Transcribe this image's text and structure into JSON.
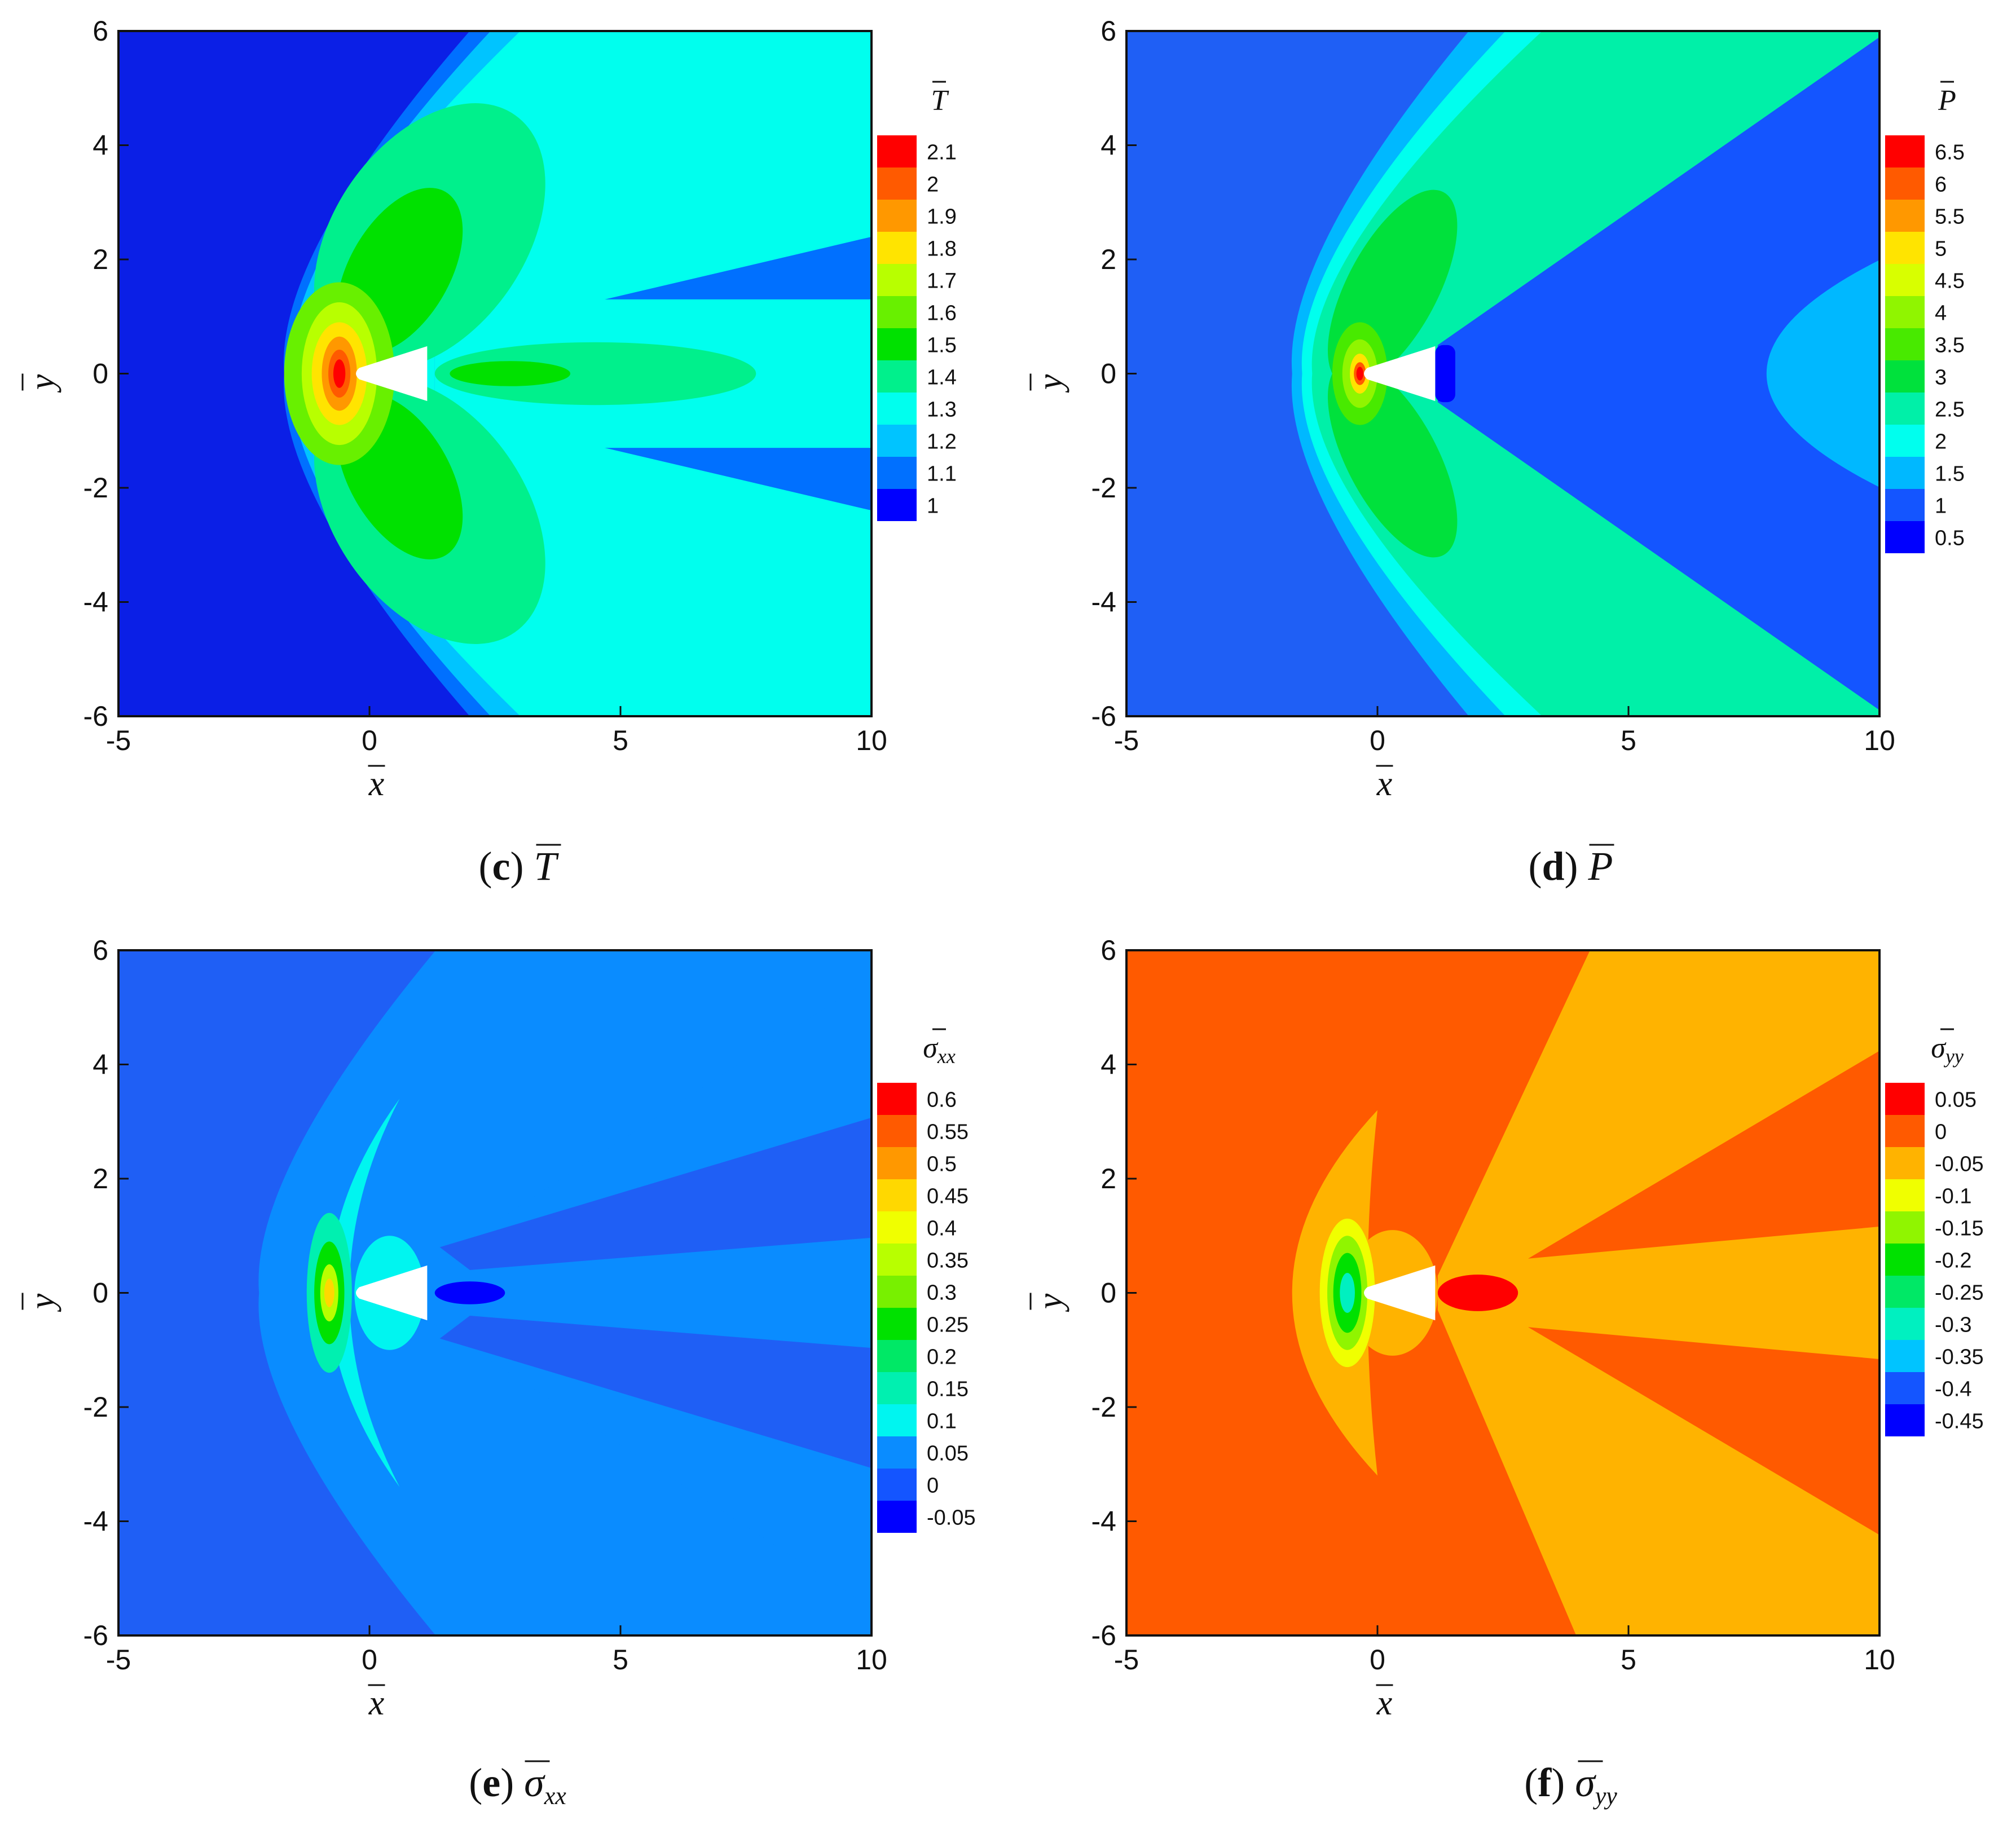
{
  "chart_data": [
    {
      "type": "heatmap",
      "panel": "c",
      "caption_tag": "c",
      "caption_var": "T",
      "xlabel": "x",
      "ylabel": "y",
      "xlim": [
        -5,
        10
      ],
      "ylim": [
        -6,
        6
      ],
      "xticks": [
        "-5",
        "0",
        "5",
        "10"
      ],
      "yticks": [
        "6",
        "4",
        "2",
        "0",
        "-2",
        "-4",
        "-6"
      ],
      "legend_title": "T",
      "legend_position": "right",
      "levels": [
        "2.1",
        "2",
        "1.9",
        "1.8",
        "1.7",
        "1.6",
        "1.5",
        "1.4",
        "1.3",
        "1.2",
        "1.1",
        "1"
      ],
      "colors": [
        "#ff0000",
        "#ff5a00",
        "#ff9800",
        "#ffe400",
        "#b8ff00",
        "#68f000",
        "#00e100",
        "#00f08c",
        "#00ffee",
        "#00c4ff",
        "#0070ff",
        "#0000ff"
      ],
      "background_color": "#0b1fe6",
      "body_x": [
        0,
        1.15
      ],
      "shock_standoff_x": -1.7
    },
    {
      "type": "heatmap",
      "panel": "d",
      "caption_tag": "d",
      "caption_var": "P",
      "xlabel": "x",
      "ylabel": "y",
      "xlim": [
        -5,
        10
      ],
      "ylim": [
        -6,
        6
      ],
      "xticks": [
        "-5",
        "0",
        "5",
        "10"
      ],
      "yticks": [
        "6",
        "4",
        "2",
        "0",
        "-2",
        "-4",
        "-6"
      ],
      "legend_title": "P",
      "legend_position": "right",
      "levels": [
        "6.5",
        "6",
        "5.5",
        "5",
        "4.5",
        "4",
        "3.5",
        "3",
        "2.5",
        "2",
        "1.5",
        "1",
        "0.5"
      ],
      "colors": [
        "#ff0000",
        "#ff5a00",
        "#ff9800",
        "#ffe400",
        "#d8ff00",
        "#90f500",
        "#48ea00",
        "#00e13c",
        "#00f0a8",
        "#00ffee",
        "#00b8ff",
        "#1455ff",
        "#0000ff"
      ],
      "background_color": "#1f5ff5",
      "body_x": [
        0,
        1.15
      ],
      "shock_standoff_x": -1.7
    },
    {
      "type": "heatmap",
      "panel": "e",
      "caption_tag": "e",
      "caption_var": "σ",
      "caption_sub": "xx",
      "xlabel": "x",
      "ylabel": "y",
      "xlim": [
        -5,
        10
      ],
      "ylim": [
        -6,
        6
      ],
      "xticks": [
        "-5",
        "0",
        "5",
        "10"
      ],
      "yticks": [
        "6",
        "4",
        "2",
        "0",
        "-2",
        "-4",
        "-6"
      ],
      "legend_title": "σ",
      "legend_sub": "xx",
      "legend_position": "right",
      "levels": [
        "0.6",
        "0.55",
        "0.5",
        "0.45",
        "0.4",
        "0.35",
        "0.3",
        "0.25",
        "0.2",
        "0.15",
        "0.1",
        "0.05",
        "0",
        "-0.05"
      ],
      "colors": [
        "#ff0000",
        "#ff5a00",
        "#ff9800",
        "#ffd800",
        "#f0ff00",
        "#b8ff00",
        "#78f000",
        "#00e100",
        "#00e866",
        "#00f0b0",
        "#00f5f0",
        "#0a8cff",
        "#1455ff",
        "#0000ff"
      ],
      "background_color": "#1f5ff5",
      "body_x": [
        0,
        1.15
      ],
      "shock_standoff_x": -2.2
    },
    {
      "type": "heatmap",
      "panel": "f",
      "caption_tag": "f",
      "caption_var": "σ",
      "caption_sub": "yy",
      "xlabel": "x",
      "ylabel": "y",
      "xlim": [
        -5,
        10
      ],
      "ylim": [
        -6,
        6
      ],
      "xticks": [
        "-5",
        "0",
        "5",
        "10"
      ],
      "yticks": [
        "6",
        "4",
        "2",
        "0",
        "-2",
        "-4",
        "-6"
      ],
      "legend_title": "σ",
      "legend_sub": "yy",
      "legend_position": "right",
      "levels": [
        "0.05",
        "0",
        "-0.05",
        "-0.1",
        "-0.15",
        "-0.2",
        "-0.25",
        "-0.3",
        "-0.35",
        "-0.4",
        "-0.45"
      ],
      "colors": [
        "#ff0000",
        "#ff5a00",
        "#ffb300",
        "#f0ff00",
        "#90f500",
        "#00e100",
        "#00e866",
        "#00f0c0",
        "#00c4ff",
        "#1455ff",
        "#0000ff"
      ],
      "background_color": "#ff5a00",
      "body_x": [
        0,
        1.15
      ],
      "shock_standoff_x": -2.2
    }
  ]
}
